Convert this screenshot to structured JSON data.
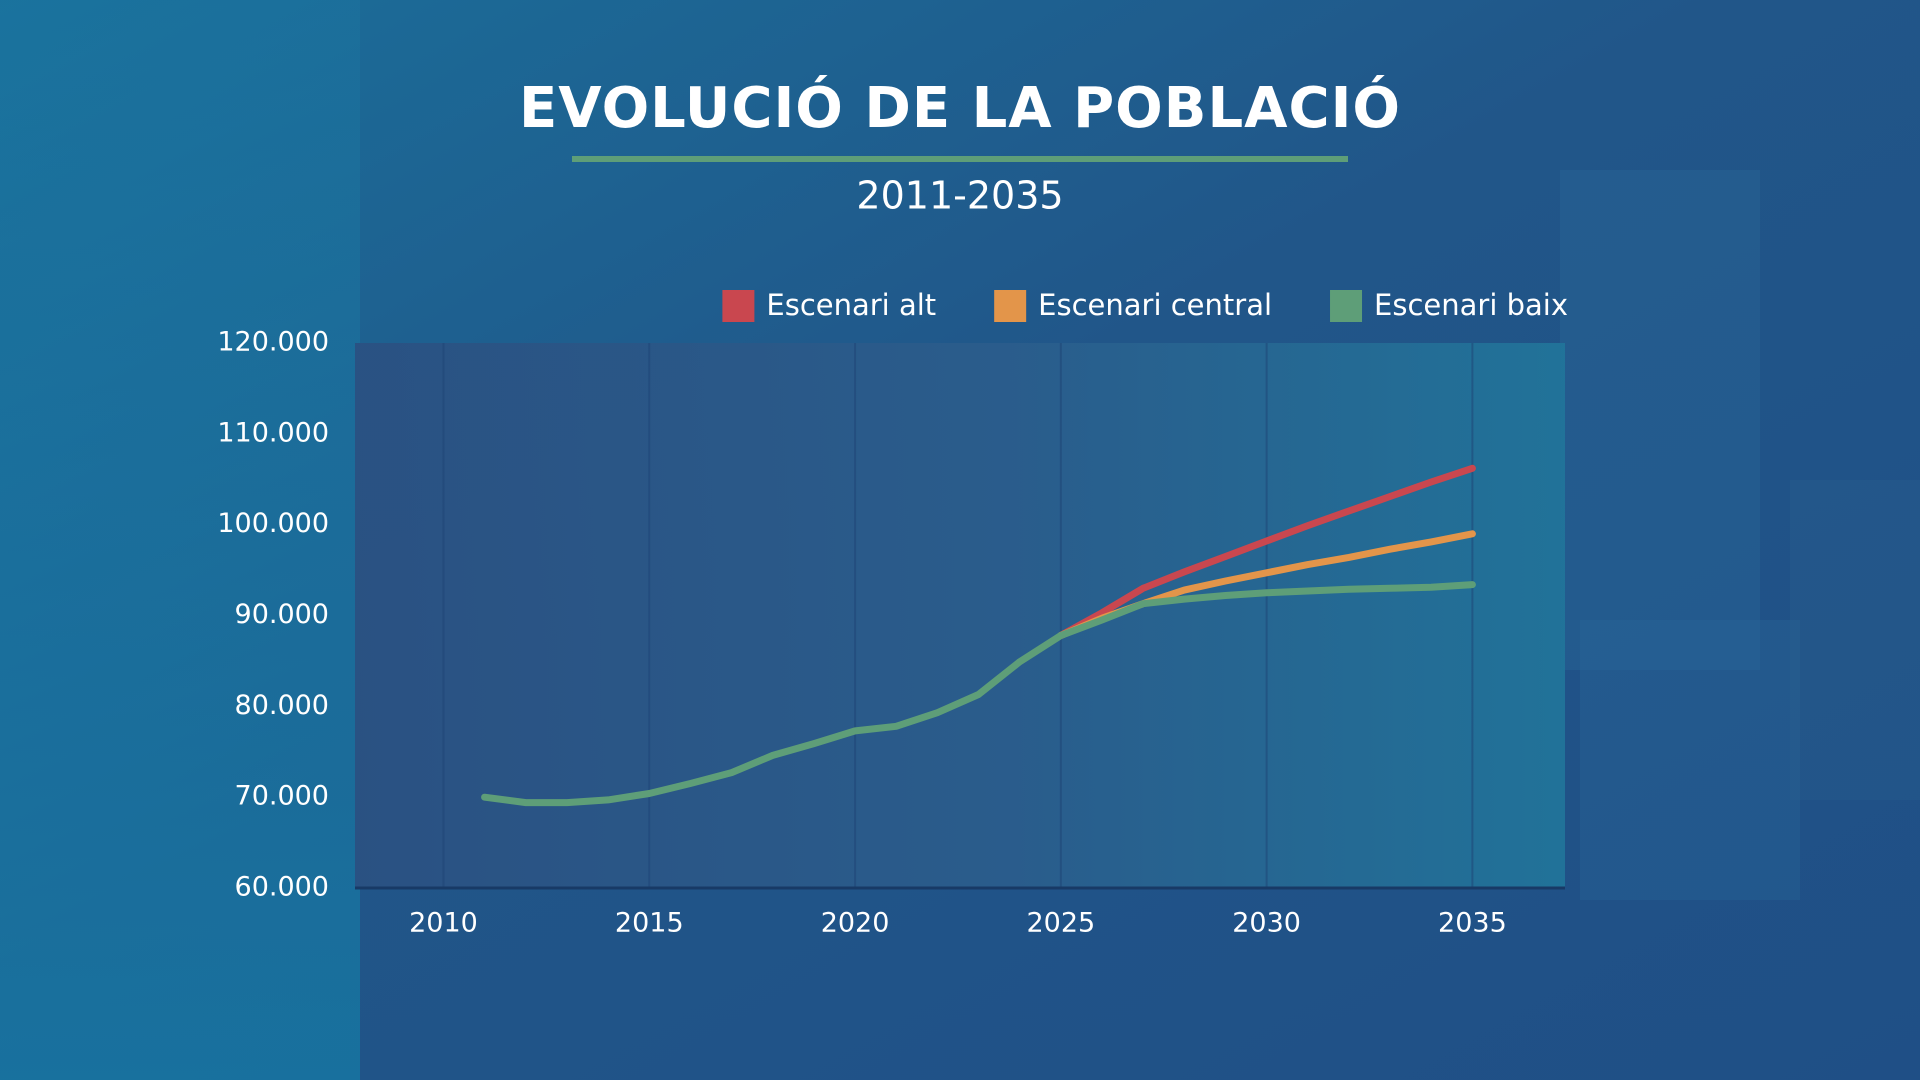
{
  "chart_data": {
    "type": "line",
    "title": "EVOLUCIÓ DE LA POBLACIÓ",
    "subtitle": "2011-2035",
    "x": [
      2011,
      2012,
      2013,
      2014,
      2015,
      2016,
      2017,
      2018,
      2019,
      2020,
      2021,
      2022,
      2023,
      2024,
      2025,
      2026,
      2027,
      2028,
      2029,
      2030,
      2031,
      2032,
      2033,
      2034,
      2035
    ],
    "series": [
      {
        "name": "Escenari alt",
        "color": "#c9474f",
        "values": [
          null,
          null,
          null,
          null,
          null,
          null,
          null,
          null,
          null,
          null,
          null,
          null,
          null,
          null,
          87800,
          90300,
          93000,
          94800,
          96500,
          98200,
          99900,
          101500,
          103100,
          104700,
          106200
        ]
      },
      {
        "name": "Escenari central",
        "color": "#e3954a",
        "values": [
          null,
          null,
          null,
          null,
          null,
          null,
          null,
          null,
          null,
          null,
          null,
          null,
          null,
          null,
          87800,
          89700,
          91300,
          92800,
          93800,
          94700,
          95600,
          96400,
          97300,
          98100,
          99000
        ]
      },
      {
        "name": "Escenari baix",
        "color": "#5e9e78",
        "values": [
          70000,
          69400,
          69400,
          69700,
          70400,
          71500,
          72700,
          74600,
          75900,
          77300,
          77800,
          79300,
          81300,
          84900,
          87800,
          89500,
          91300,
          91800,
          92200,
          92500,
          92700,
          92900,
          93000,
          93100,
          93400
        ]
      }
    ],
    "xlim": [
      2007.85,
      2037.25
    ],
    "ylim": [
      60000,
      120000
    ],
    "xticks": [
      2010,
      2015,
      2020,
      2025,
      2030,
      2035
    ],
    "yticks": [
      {
        "value": 60000,
        "label": "60.000"
      },
      {
        "value": 70000,
        "label": "70.000"
      },
      {
        "value": 80000,
        "label": "80.000"
      },
      {
        "value": 90000,
        "label": "90.000"
      },
      {
        "value": 100000,
        "label": "100.000"
      },
      {
        "value": 110000,
        "label": "110.000"
      },
      {
        "value": 120000,
        "label": "120.000"
      }
    ],
    "grid": true,
    "legend": "top"
  }
}
